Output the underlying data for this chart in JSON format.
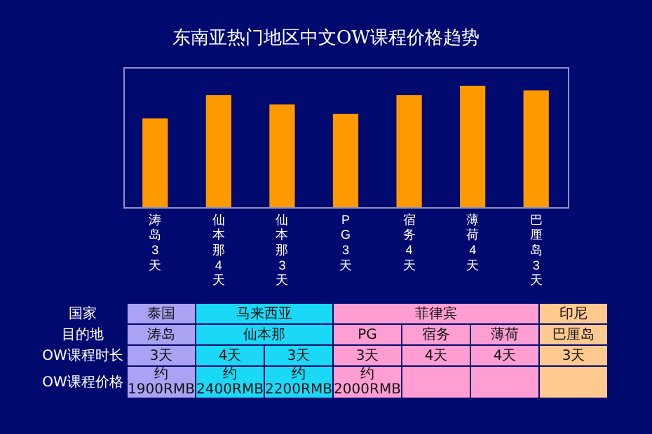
{
  "chart_data": {
    "type": "bar",
    "title": "东南亚热门地区中文OW课程价格趋势",
    "categories": [
      "涛岛3天",
      "仙本那4天",
      "仙本那3天",
      "PG3天",
      "宿务4天",
      "薄荷4天",
      "巴厘岛3天"
    ],
    "values": [
      1900,
      2400,
      2200,
      2000,
      2400,
      2600,
      2500
    ],
    "color": "#ff9900",
    "ylim": [
      0,
      3000
    ],
    "tick_labels": "x",
    "value_labels": [
      "约\n1900RMB",
      "约\n2400RMB",
      "约\n2200RMB",
      "约\n2000RMB",
      null,
      null,
      null
    ],
    "annotations": [
      "国家",
      "泰国",
      "马来西亚",
      "菲律宾",
      "印尼",
      "目的地",
      "涛岛",
      "仙本那",
      "PG",
      "宿务",
      "薄荷",
      "巴厘岛",
      "OW课程时长",
      "3天",
      "4天",
      "3天",
      "3天",
      "4天",
      "4天",
      "3天",
      "OW课程价格"
    ]
  }
}
